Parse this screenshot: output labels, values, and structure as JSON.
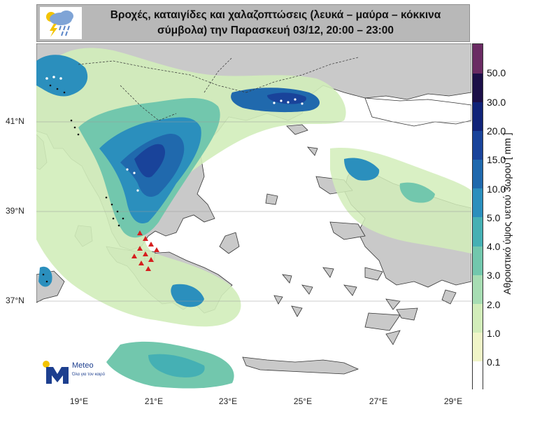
{
  "title": {
    "line1": "Βροχές, καταιγίδες και χαλαζοπτώσεις (λευκά – μαύρα – κόκκινα",
    "line2": "σύμβολα) την Παρασκευή 03/12, 20:00 – 23:00"
  },
  "header_icon": "rain-thunder-cloud-icon",
  "map": {
    "lat_labels": [
      "41°N",
      "39°N",
      "37°N"
    ],
    "lon_labels": [
      "19°E",
      "21°E",
      "23°E",
      "25°E",
      "27°E",
      "29°E"
    ],
    "extent": {
      "lon": [
        18.0,
        30.0
      ],
      "lat": [
        35.0,
        42.7
      ]
    },
    "sea_color": "#ffffff",
    "land_color": "#c9c9c9",
    "symbols": [
      "white-dots",
      "black-dots",
      "red-triangles"
    ]
  },
  "colorbar": {
    "title": "Αθροιστικό ύψος υετού 3ωρου [ mm ]",
    "ticks": [
      "0.1",
      "1.0",
      "2.0",
      "3.0",
      "4.0",
      "5.0",
      "10.0",
      "15.0",
      "20.0",
      "30.0",
      "50.0"
    ],
    "colors": [
      "#ffffff",
      "#f0f5c8",
      "#d2edba",
      "#a7ddb3",
      "#72c7ad",
      "#45b0b4",
      "#2b8fbd",
      "#2069ad",
      "#19439a",
      "#102378",
      "#1c0f48",
      "#6a2b63"
    ]
  },
  "logo": {
    "name": "Meteo",
    "tagline": "Όλα για τον καιρό",
    "colors": {
      "blue": "#1d3f8f",
      "yellow": "#f3c300"
    }
  }
}
